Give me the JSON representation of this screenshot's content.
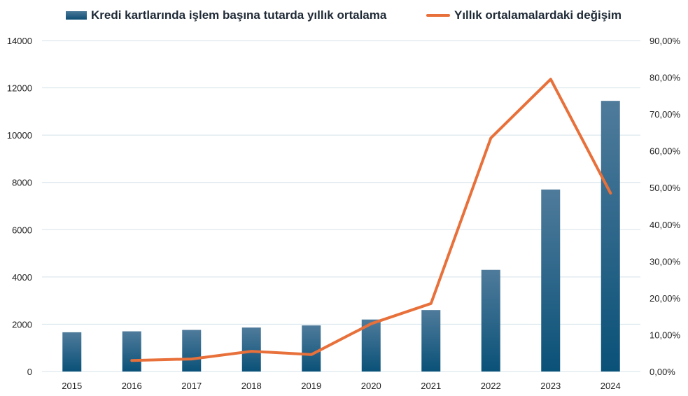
{
  "chart_data": {
    "type": "bar",
    "categories": [
      "2015",
      "2016",
      "2017",
      "2018",
      "2019",
      "2020",
      "2021",
      "2022",
      "2023",
      "2024"
    ],
    "series": [
      {
        "name": "Kredi kartlarında işlem başına tutarda yıllık ortalama",
        "type": "bar",
        "axis": "left",
        "color": "#0d5a82",
        "values": [
          1660,
          1700,
          1760,
          1860,
          1950,
          2200,
          2600,
          4300,
          7700,
          11450
        ]
      },
      {
        "name": "Yıllık ortalamalardaki değişim",
        "type": "line",
        "axis": "right",
        "color": "#e8703a",
        "values": [
          null,
          3.0,
          3.4,
          5.5,
          4.6,
          13.0,
          18.5,
          63.5,
          79.5,
          48.5
        ]
      }
    ],
    "y_left": {
      "ylim": [
        0,
        14000
      ],
      "ticks": [
        "0",
        "2000",
        "4000",
        "6000",
        "8000",
        "10000",
        "12000",
        "14000"
      ]
    },
    "y_right": {
      "ylim": [
        0,
        90
      ],
      "ticks": [
        "0,00%",
        "10,00%",
        "20,00%",
        "30,00%",
        "40,00%",
        "50,00%",
        "60,00%",
        "70,00%",
        "80,00%",
        "90,00%"
      ]
    },
    "grid": true,
    "legend_position": "top"
  }
}
